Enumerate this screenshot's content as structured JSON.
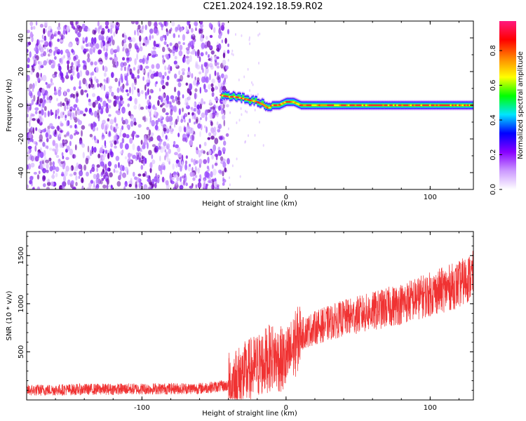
{
  "title": "C2E1.2024.192.18.59.R02",
  "chart_data": [
    {
      "type": "heatmap",
      "xlabel": "Height of straight line (km)",
      "ylabel": "Frequency (Hz)",
      "xlim": [
        -180,
        130
      ],
      "ylim": [
        -50,
        50
      ],
      "x_ticks": [
        -100,
        0,
        100
      ],
      "y_ticks": [
        -40,
        -20,
        0,
        20,
        40
      ],
      "colorbar": {
        "label": "Normalized spectral amplitude",
        "range": [
          0,
          0.97
        ],
        "ticks": [
          "0.0",
          "0.2",
          "0.4",
          "0.6",
          "0.8"
        ],
        "colormap": [
          "#ffffff",
          "#cc99ff",
          "#8800ff",
          "#0000ff",
          "#00e5ff",
          "#00ff00",
          "#ffff00",
          "#ff8800",
          "#ff0000",
          "#ff1a7f"
        ]
      },
      "noise_region_x": [
        -180,
        -40
      ],
      "signal_trace": {
        "x": [
          -45,
          -40,
          -35,
          -30,
          -25,
          -20,
          -15,
          -12,
          -10,
          -5,
          0,
          5,
          10,
          20,
          40,
          60,
          80,
          100,
          130
        ],
        "y": [
          6,
          5,
          5,
          4,
          3,
          2,
          0,
          -2,
          0,
          0,
          2,
          2,
          0,
          0,
          0,
          0,
          0,
          0,
          0
        ]
      }
    },
    {
      "type": "line",
      "xlabel": "Height of straight line (km)",
      "ylabel": "SNR (10 * v/v)",
      "xlim": [
        -180,
        130
      ],
      "ylim": [
        0,
        1750
      ],
      "x_ticks": [
        -100,
        0,
        100
      ],
      "y_ticks": [
        500,
        1000,
        1500
      ],
      "color": "#f03232",
      "trend": {
        "x": [
          -180,
          -140,
          -100,
          -60,
          -40,
          -30,
          -20,
          -10,
          0,
          10,
          20,
          40,
          60,
          80,
          100,
          120,
          130
        ],
        "y": [
          100,
          110,
          115,
          120,
          150,
          250,
          350,
          450,
          400,
          680,
          750,
          850,
          920,
          1000,
          1100,
          1200,
          1300
        ]
      }
    }
  ]
}
